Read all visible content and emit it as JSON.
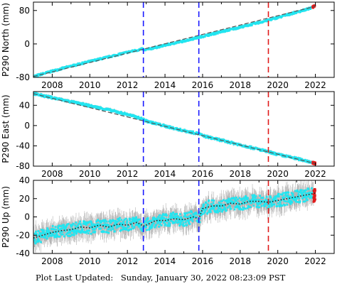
{
  "chart_data": [
    {
      "type": "scatter",
      "ylabel": "P290 North (mm)",
      "xlim": [
        2007.0,
        2023.0
      ],
      "ylim": [
        -80,
        100
      ],
      "xticks": [
        2008,
        2010,
        2012,
        2014,
        2016,
        2018,
        2020,
        2022
      ],
      "yticks": [
        -80,
        0,
        80
      ],
      "grid": false,
      "vlines": [
        {
          "x": 2012.85,
          "color": "#1a1aff"
        },
        {
          "x": 2015.8,
          "color": "#1a1aff"
        },
        {
          "x": 2019.5,
          "color": "#e01a1a"
        }
      ],
      "series": [
        {
          "kind": "scatter",
          "color": "#22e5f0",
          "x": [
            2007.0,
            2008.0,
            2009.0,
            2010.0,
            2011.0,
            2012.0,
            2012.8,
            2012.9,
            2014.0,
            2015.0,
            2015.8,
            2016.0,
            2017.0,
            2018.0,
            2019.0,
            2019.5,
            2020.0,
            2021.0,
            2021.8
          ],
          "y": [
            -78,
            -65,
            -53,
            -42,
            -31,
            -20,
            -12,
            -15,
            -3,
            7,
            16,
            18,
            29,
            40,
            51,
            57,
            63,
            76,
            86
          ]
        },
        {
          "kind": "scatter",
          "color": "#e01a1a",
          "x": [
            2021.85,
            2022.0
          ],
          "y": [
            88,
            92
          ]
        },
        {
          "kind": "line",
          "color": "#555555",
          "x": [
            2007.0,
            2022.0
          ],
          "y": [
            -78,
            90
          ]
        }
      ]
    },
    {
      "type": "scatter",
      "ylabel": "P290 East (mm)",
      "xlim": [
        2007.0,
        2023.0
      ],
      "ylim": [
        -80,
        67
      ],
      "xticks": [
        2008,
        2010,
        2012,
        2014,
        2016,
        2018,
        2020,
        2022
      ],
      "yticks": [
        -80,
        -40,
        0,
        40
      ],
      "grid": false,
      "vlines": [
        {
          "x": 2012.85,
          "color": "#1a1aff"
        },
        {
          "x": 2015.8,
          "color": "#1a1aff"
        },
        {
          "x": 2019.5,
          "color": "#e01a1a"
        }
      ],
      "series": [
        {
          "kind": "scatter",
          "color": "#22e5f0",
          "x": [
            2007.0,
            2008.0,
            2009.0,
            2010.0,
            2011.0,
            2012.0,
            2012.8,
            2013.0,
            2014.0,
            2015.0,
            2015.8,
            2016.0,
            2017.0,
            2018.0,
            2019.0,
            2019.5,
            2020.0,
            2021.0,
            2021.8
          ],
          "y": [
            63,
            55,
            47,
            39,
            31,
            22,
            13,
            9,
            -1,
            -10,
            -16,
            -20,
            -29,
            -38,
            -47,
            -52,
            -57,
            -65,
            -72
          ]
        },
        {
          "kind": "scatter",
          "color": "#e01a1a",
          "x": [
            2021.85,
            2022.0
          ],
          "y": [
            -73,
            -75
          ]
        },
        {
          "kind": "line",
          "color": "#555555",
          "x": [
            2007.0,
            2022.0
          ],
          "y": [
            63,
            -75
          ]
        }
      ]
    },
    {
      "type": "scatter",
      "ylabel": "P290 Up (mm)",
      "xlim": [
        2007.0,
        2023.0
      ],
      "ylim": [
        -40,
        40
      ],
      "xticks": [
        2008,
        2010,
        2012,
        2014,
        2016,
        2018,
        2020,
        2022
      ],
      "yticks": [
        -40,
        -20,
        0,
        20,
        40
      ],
      "grid": false,
      "vlines": [
        {
          "x": 2012.85,
          "color": "#1a1aff"
        },
        {
          "x": 2015.8,
          "color": "#1a1aff"
        },
        {
          "x": 2019.5,
          "color": "#e01a1a"
        }
      ],
      "series": [
        {
          "kind": "scatter",
          "color": "#22e5f0",
          "x": [
            2007.0,
            2007.5,
            2008.0,
            2008.5,
            2009.0,
            2009.5,
            2010.0,
            2010.5,
            2011.0,
            2011.5,
            2012.0,
            2012.5,
            2012.85,
            2013.0,
            2013.5,
            2014.0,
            2014.5,
            2015.0,
            2015.5,
            2015.8,
            2016.0,
            2016.5,
            2017.0,
            2017.5,
            2018.0,
            2018.5,
            2019.0,
            2019.5,
            2020.0,
            2020.5,
            2021.0,
            2021.5,
            2021.9
          ],
          "y": [
            -23,
            -20,
            -17,
            -15,
            -14,
            -11,
            -12,
            -9,
            -11,
            -8,
            -9,
            -6,
            -10,
            -9,
            -4,
            -4,
            -2,
            -3,
            0,
            -2,
            9,
            12,
            12,
            15,
            14,
            17,
            17,
            16,
            18,
            20,
            22,
            24,
            26
          ]
        },
        {
          "kind": "scatter",
          "color": "#e01a1a",
          "x": [
            2021.9,
            2022.0
          ],
          "y": [
            22,
            25
          ]
        },
        {
          "kind": "line",
          "color": "#222222",
          "x": [
            2007.0,
            2007.5,
            2008.0,
            2008.5,
            2009.0,
            2009.5,
            2010.0,
            2010.5,
            2011.0,
            2011.5,
            2012.0,
            2012.5,
            2012.85,
            2013.0,
            2013.5,
            2014.0,
            2014.5,
            2015.0,
            2015.5,
            2015.8,
            2016.0,
            2016.5,
            2017.0,
            2017.5,
            2018.0,
            2018.5,
            2019.0,
            2019.5,
            2020.0,
            2020.5,
            2021.0,
            2021.5,
            2022.0
          ],
          "y": [
            -23,
            -20,
            -17,
            -15,
            -14,
            -11,
            -12,
            -9,
            -11,
            -8,
            -9,
            -6,
            -10,
            -9,
            -4,
            -4,
            -2,
            -3,
            0,
            -2,
            9,
            12,
            12,
            15,
            14,
            17,
            17,
            16,
            18,
            20,
            22,
            24,
            26
          ]
        }
      ]
    }
  ],
  "footer": {
    "label": "Plot Last Updated:",
    "timestamp": "Sunday, January 30, 2022 08:23:09 PST"
  }
}
